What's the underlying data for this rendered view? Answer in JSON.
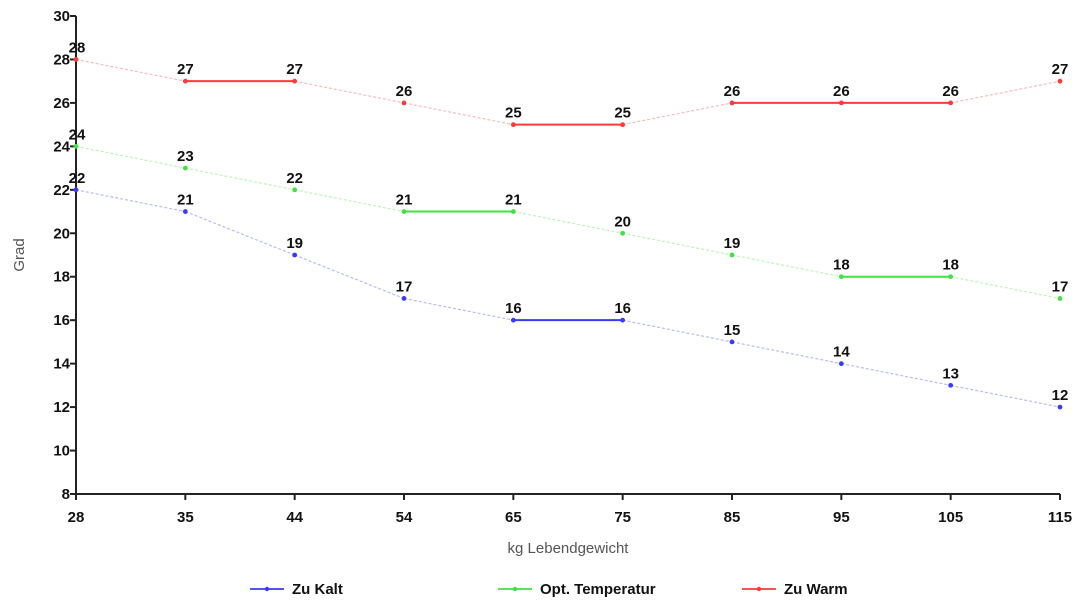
{
  "chart_data": {
    "type": "line",
    "xlabel": "kg Lebendgewicht",
    "ylabel": "Grad",
    "categories": [
      "28",
      "35",
      "44",
      "54",
      "65",
      "75",
      "85",
      "95",
      "105",
      "115"
    ],
    "ylim": [
      8,
      30
    ],
    "yticks": [
      8,
      10,
      12,
      14,
      16,
      18,
      20,
      22,
      24,
      26,
      28,
      30
    ],
    "grid": false,
    "legend_position": "bottom",
    "series": [
      {
        "name": "Zu Kalt",
        "color": "#3a3aff",
        "values": [
          22,
          21,
          19,
          17,
          16,
          16,
          15,
          14,
          13,
          12
        ]
      },
      {
        "name": "Opt. Temperatur",
        "color": "#3fe23f",
        "values": [
          24,
          23,
          22,
          21,
          21,
          20,
          19,
          18,
          18,
          17
        ]
      },
      {
        "name": "Zu Warm",
        "color": "#ff3a3a",
        "values": [
          28,
          27,
          27,
          26,
          25,
          25,
          26,
          26,
          26,
          27
        ]
      }
    ]
  }
}
